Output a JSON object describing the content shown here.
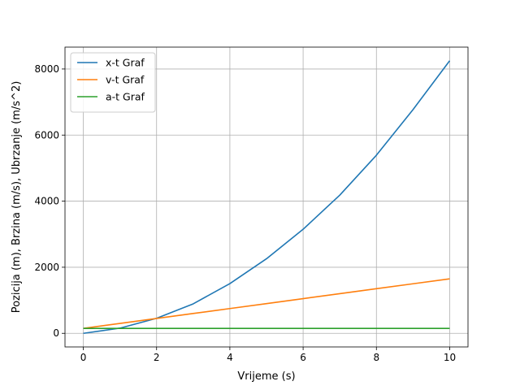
{
  "chart_data": {
    "type": "line",
    "title": "",
    "xlabel": "Vrijeme (s)",
    "ylabel": "Pozicija (m), Brzina (m/s), Ubrzanje (m/s^2)",
    "xlim": [
      -0.5,
      10.5
    ],
    "ylim": [
      -412,
      8662
    ],
    "xticks": [
      0,
      2,
      4,
      6,
      8,
      10
    ],
    "xtick_labels": [
      "0",
      "2",
      "4",
      "6",
      "8",
      "10"
    ],
    "yticks": [
      0,
      2000,
      4000,
      6000,
      8000
    ],
    "ytick_labels": [
      "0",
      "2000",
      "4000",
      "6000",
      "8000"
    ],
    "grid": true,
    "legend_position": "top-left",
    "x": [
      0,
      1,
      2,
      3,
      4,
      5,
      6,
      7,
      8,
      9,
      10
    ],
    "series": [
      {
        "name": "x-t Graf",
        "color": "#1f77b4",
        "values": [
          0,
          157.5,
          455,
          892.5,
          1505,
          2257.5,
          3150,
          4182.5,
          5390,
          6772.5,
          8250
        ]
      },
      {
        "name": "v-t Graf",
        "color": "#ff7f0e",
        "values": [
          150,
          300,
          450,
          600,
          750,
          900,
          1050,
          1200,
          1350,
          1500,
          1650
        ]
      },
      {
        "name": "a-t Graf",
        "color": "#2ca02c",
        "values": [
          150,
          150,
          150,
          150,
          150,
          150,
          150,
          150,
          150,
          150,
          150
        ]
      }
    ]
  }
}
